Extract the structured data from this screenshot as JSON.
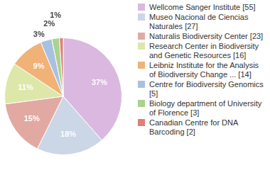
{
  "chart_data": {
    "type": "pie",
    "categories": [
      "Wellcome Sanger Institute [55]",
      "Museo Nacional de Ciencias Naturales [27]",
      "Naturalis Biodiversity Center [23]",
      "Research Center in Biodiversity and Genetic Resources [16]",
      "Leibniz Institute for the Analysis of Biodiversity Change ... [14]",
      "Centre for Biodiversity Genomics [5]",
      "Biology department of University of Florence [3]",
      "Canadian Centre for DNA Barcoding [2]"
    ],
    "values": [
      37,
      18,
      15,
      11,
      9,
      3,
      2,
      1
    ],
    "value_labels": [
      "37%",
      "18%",
      "15%",
      "11%",
      "9%",
      "3%",
      "2%",
      "1%"
    ],
    "colors": [
      "#dbb8df",
      "#cbd7e6",
      "#e2a9a2",
      "#dde7a9",
      "#f0b276",
      "#a9c1e0",
      "#a9d38f",
      "#e07f7a"
    ],
    "data_labels": true,
    "legend": "right"
  }
}
